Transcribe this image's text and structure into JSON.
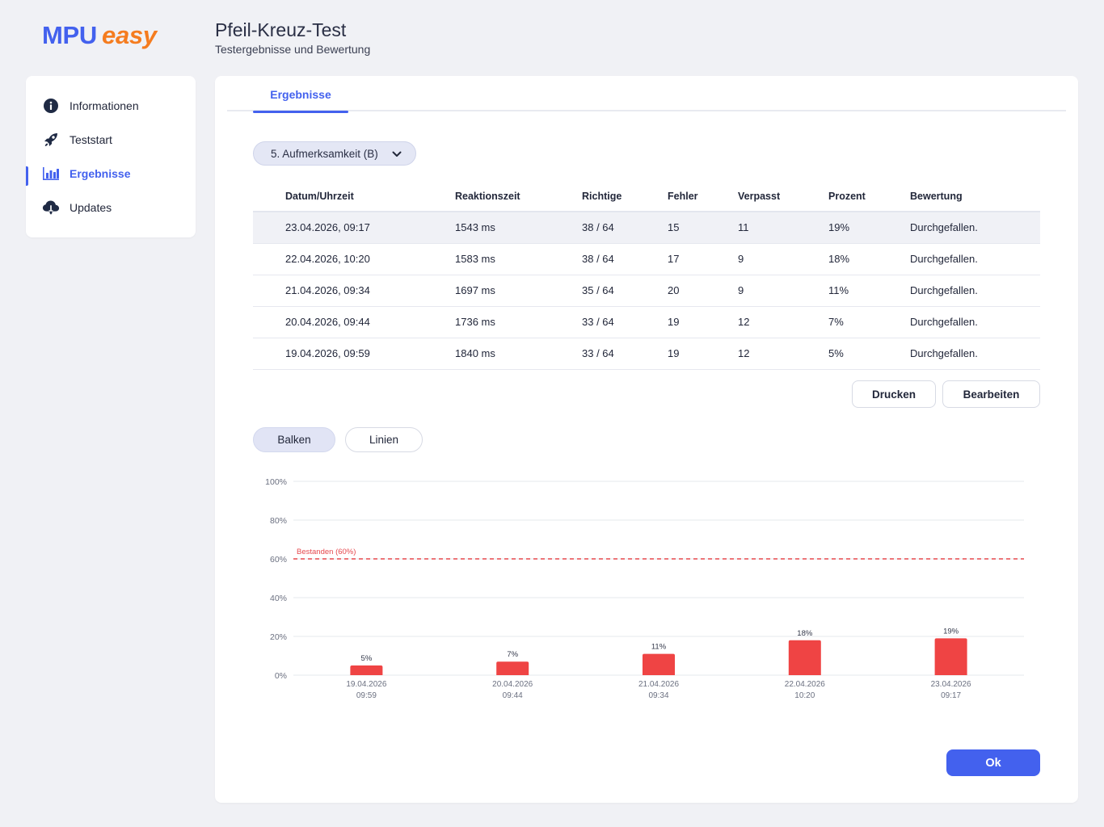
{
  "logo": {
    "part1": "MPU",
    "part2": "easy"
  },
  "header": {
    "title": "Pfeil-Kreuz-Test",
    "subtitle": "Testergebnisse und Bewertung"
  },
  "sidebar": {
    "items": [
      {
        "label": "Informationen",
        "icon": "info-icon"
      },
      {
        "label": "Teststart",
        "icon": "rocket-icon"
      },
      {
        "label": "Ergebnisse",
        "icon": "bar-chart-icon",
        "active": true
      },
      {
        "label": "Updates",
        "icon": "cloud-download-icon"
      }
    ]
  },
  "tabs": [
    {
      "label": "Ergebnisse",
      "active": true
    }
  ],
  "test_select": {
    "value": "5. Aufmerksamkeit (B)"
  },
  "table": {
    "headers": [
      "Datum/Uhrzeit",
      "Reaktionszeit",
      "Richtige",
      "Fehler",
      "Verpasst",
      "Prozent",
      "Bewertung"
    ],
    "rows": [
      [
        "23.04.2026, 09:17",
        "1543 ms",
        "38 / 64",
        "15",
        "11",
        "19%",
        "Durchgefallen."
      ],
      [
        "22.04.2026, 10:20",
        "1583 ms",
        "38 / 64",
        "17",
        "9",
        "18%",
        "Durchgefallen."
      ],
      [
        "21.04.2026, 09:34",
        "1697 ms",
        "35 / 64",
        "20",
        "9",
        "11%",
        "Durchgefallen."
      ],
      [
        "20.04.2026, 09:44",
        "1736 ms",
        "33 / 64",
        "19",
        "12",
        "7%",
        "Durchgefallen."
      ],
      [
        "19.04.2026, 09:59",
        "1840 ms",
        "33 / 64",
        "19",
        "12",
        "5%",
        "Durchgefallen."
      ]
    ]
  },
  "actions": {
    "print_label": "Drucken",
    "edit_label": "Bearbeiten",
    "ok_label": "Ok"
  },
  "chart_toggle": {
    "bars_label": "Balken",
    "lines_label": "Linien",
    "selected": "Balken"
  },
  "colors": {
    "accent": "#4361ee",
    "logo_orange": "#f57c1f",
    "bar_fail": "#ef4444",
    "threshold": "#e5484d"
  },
  "chart_data": {
    "type": "bar",
    "categories": [
      [
        "19.04.2026",
        "09:59"
      ],
      [
        "20.04.2026",
        "09:44"
      ],
      [
        "21.04.2026",
        "09:34"
      ],
      [
        "22.04.2026",
        "10:20"
      ],
      [
        "23.04.2026",
        "09:17"
      ]
    ],
    "values": [
      5,
      7,
      11,
      18,
      19
    ],
    "value_labels": [
      "5%",
      "7%",
      "11%",
      "18%",
      "19%"
    ],
    "ylim": [
      0,
      100
    ],
    "yticks": [
      0,
      20,
      40,
      60,
      80,
      100
    ],
    "ytick_labels": [
      "0%",
      "20%",
      "40%",
      "60%",
      "80%",
      "100%"
    ],
    "threshold": {
      "value": 60,
      "label": "Bestanden (60%)"
    },
    "grid": true
  }
}
